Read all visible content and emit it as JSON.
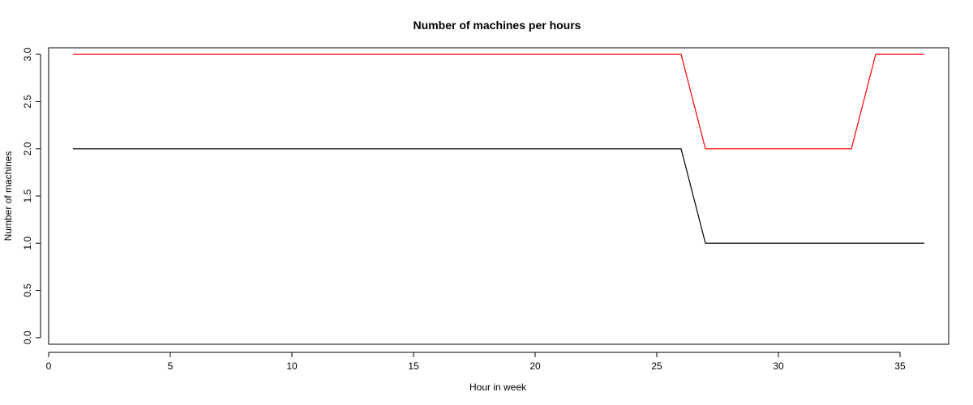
{
  "chart_data": {
    "type": "line",
    "title": "Number of machines per hours",
    "xlabel": "Hour in week",
    "ylabel": "Number of machines",
    "xlim": [
      0,
      37
    ],
    "ylim": [
      -0.07,
      3.07
    ],
    "x_ticks": [
      0,
      5,
      10,
      15,
      20,
      25,
      30,
      35
    ],
    "y_ticks": [
      0.0,
      0.5,
      1.0,
      1.5,
      2.0,
      2.5,
      3.0
    ],
    "y_tick_labels": [
      "0.0",
      "0.5",
      "1.0",
      "1.5",
      "2.0",
      "2.5",
      "3.0"
    ],
    "grid": false,
    "legend": "none",
    "x": [
      1,
      2,
      3,
      4,
      5,
      6,
      7,
      8,
      9,
      10,
      11,
      12,
      13,
      14,
      15,
      16,
      17,
      18,
      19,
      20,
      21,
      22,
      23,
      24,
      25,
      26,
      27,
      28,
      29,
      30,
      31,
      32,
      33,
      34,
      35,
      36
    ],
    "series": [
      {
        "color": "#ff0000",
        "values": [
          3,
          3,
          3,
          3,
          3,
          3,
          3,
          3,
          3,
          3,
          3,
          3,
          3,
          3,
          3,
          3,
          3,
          3,
          3,
          3,
          3,
          3,
          3,
          3,
          3,
          3,
          2,
          2,
          2,
          2,
          2,
          2,
          2,
          3,
          3,
          3
        ]
      },
      {
        "color": "#000000",
        "values": [
          2,
          2,
          2,
          2,
          2,
          2,
          2,
          2,
          2,
          2,
          2,
          2,
          2,
          2,
          2,
          2,
          2,
          2,
          2,
          2,
          2,
          2,
          2,
          2,
          2,
          2,
          1,
          1,
          1,
          1,
          1,
          1,
          1,
          1,
          1,
          1
        ]
      }
    ]
  }
}
